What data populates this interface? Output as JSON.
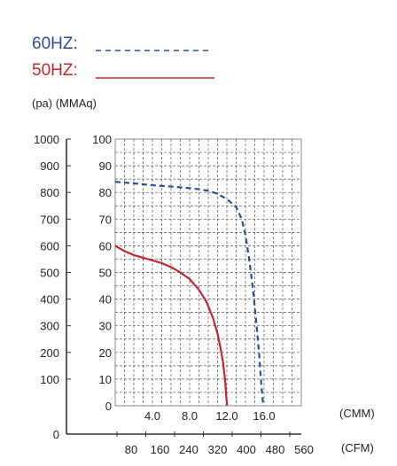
{
  "chart_data": {
    "type": "line",
    "legend": [
      {
        "label": "60HZ:",
        "color": "#2a4f96",
        "style": "dashed"
      },
      {
        "label": "50HZ:",
        "color": "#c4262e",
        "style": "solid"
      }
    ],
    "units_label": "(pa) (MMAq)",
    "y_pa_ticks": [
      "1000",
      "900",
      "800",
      "700",
      "600",
      "500",
      "400",
      "300",
      "200",
      "100",
      "0"
    ],
    "y_mmaq_ticks": [
      "100",
      "90",
      "80",
      "70",
      "60",
      "50",
      "40",
      "30",
      "20",
      "10",
      "0"
    ],
    "x_cmm_ticks": [
      "4.0",
      "8.0",
      "12.0",
      "16.0"
    ],
    "x_cmm_label": "(CMM)",
    "x_cfm_ticks": [
      "80",
      "160",
      "240",
      "320",
      "400",
      "480",
      "560"
    ],
    "x_cfm_label": "(CFM)",
    "xlim": [
      0,
      20
    ],
    "ylim": [
      0,
      100
    ],
    "grid": true,
    "series": [
      {
        "name": "60HZ",
        "color": "#2a4f96",
        "style": "dashed",
        "x": [
          0,
          2,
          4,
          6,
          8,
          9,
          10,
          11,
          12,
          13,
          13.6,
          14,
          14.4,
          14.8,
          15.2,
          15.5,
          15.7,
          15.9
        ],
        "y": [
          84,
          83.4,
          82.7,
          82.2,
          81.6,
          81.2,
          80.6,
          79.5,
          77.5,
          74.5,
          70,
          64,
          55,
          44,
          30,
          18,
          8,
          0
        ]
      },
      {
        "name": "50HZ",
        "color": "#c4262e",
        "style": "solid",
        "x": [
          0,
          1,
          2,
          3,
          4,
          5,
          6,
          7,
          8,
          9,
          9.8,
          10.5,
          11,
          11.3,
          11.6,
          11.8,
          11.9,
          12.0,
          12.0
        ],
        "y": [
          60,
          58,
          56.5,
          55.5,
          54.5,
          53.5,
          52,
          50,
          47.5,
          43.5,
          39,
          33,
          27,
          22,
          16,
          10,
          5,
          1,
          0
        ]
      }
    ]
  }
}
